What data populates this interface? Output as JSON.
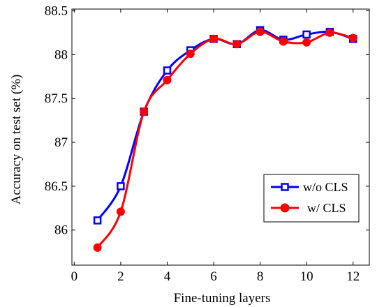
{
  "chart_data": {
    "type": "line",
    "title": "",
    "xlabel": "Fine-tuning layers",
    "ylabel": "Accuracy on test set (%)",
    "xlim": [
      -0.1,
      12.7
    ],
    "ylim": [
      85.6,
      88.52
    ],
    "xticks": [
      0,
      2,
      4,
      6,
      8,
      10,
      12
    ],
    "xtick_labels": [
      "0",
      "2",
      "4",
      "6",
      "8",
      "10",
      "12"
    ],
    "yticks": [
      86,
      86.5,
      87,
      87.5,
      88,
      88.5
    ],
    "ytick_labels": [
      "86",
      "86.5",
      "87",
      "87.5",
      "88",
      "88.5"
    ],
    "x": [
      1,
      2,
      3,
      4,
      5,
      6,
      7,
      8,
      9,
      10,
      11,
      12
    ],
    "series": [
      {
        "name": "w/o CLS",
        "color": "#0000ff",
        "marker": "square",
        "values": [
          86.11,
          86.5,
          87.35,
          87.82,
          88.05,
          88.18,
          88.12,
          88.28,
          88.17,
          88.23,
          88.26,
          88.18
        ]
      },
      {
        "name": "w/ CLS",
        "color": "#ff0000",
        "marker": "circle",
        "values": [
          85.8,
          86.21,
          87.35,
          87.71,
          88.01,
          88.18,
          88.12,
          88.26,
          88.15,
          88.14,
          88.25,
          88.19
        ]
      }
    ],
    "legend_position": "lower-right",
    "grid": false
  }
}
